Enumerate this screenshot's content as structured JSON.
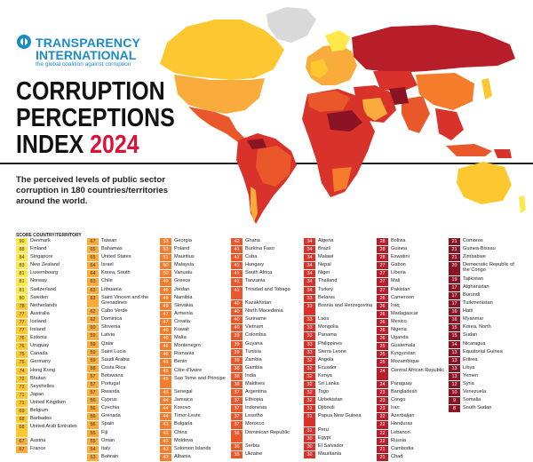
{
  "logo": {
    "line1": "TRANSPARENCY",
    "line2": "INTERNATIONAL",
    "tagline": "the global coalition against corruption"
  },
  "title": {
    "line1": "CORRUPTION",
    "line2": "PERCEPTIONS",
    "line3": "INDEX",
    "year": "2024"
  },
  "description": "The perceived levels of public sector corruption in 180 countries/territories around the world.",
  "legend_header": "SCORE  COUNTRY/TERRITORY",
  "map_colors": {
    "very_clean": "#ffe84a",
    "clean": "#fdc82f",
    "moderate": "#f9ab3c",
    "mid": "#f47c2a",
    "low": "#e9572b",
    "lower": "#d8322b",
    "very_low": "#b81d2a",
    "highly_corrupt": "#8a1324",
    "no_data": "#d9d9d9"
  },
  "columns": [
    [
      {
        "s": "90",
        "n": "Denmark",
        "c": "c-lyellow"
      },
      {
        "s": "88",
        "n": "Finland",
        "c": "c-lyellow"
      },
      {
        "s": "84",
        "n": "Singapore",
        "c": "c-lyellow"
      },
      {
        "s": "83",
        "n": "New Zealand",
        "c": "c-lyellow"
      },
      {
        "s": "81",
        "n": "Luxembourg",
        "c": "c-lyellow"
      },
      {
        "s": "81",
        "n": "Norway",
        "c": "c-lyellow"
      },
      {
        "s": "81",
        "n": "Switzerland",
        "c": "c-lyellow"
      },
      {
        "s": "80",
        "n": "Sweden",
        "c": "c-lyellow"
      },
      {
        "s": "78",
        "n": "Netherlands",
        "c": "c-yellow"
      },
      {
        "s": "77",
        "n": "Australia",
        "c": "c-yellow"
      },
      {
        "s": "77",
        "n": "Iceland",
        "c": "c-yellow"
      },
      {
        "s": "77",
        "n": "Ireland",
        "c": "c-yellow"
      },
      {
        "s": "76",
        "n": "Estonia",
        "c": "c-yellow"
      },
      {
        "s": "76",
        "n": "Uruguay",
        "c": "c-yellow"
      },
      {
        "s": "75",
        "n": "Canada",
        "c": "c-yellow"
      },
      {
        "s": "75",
        "n": "Germany",
        "c": "c-yellow"
      },
      {
        "s": "74",
        "n": "Hong Kong",
        "c": "c-yellow"
      },
      {
        "s": "72",
        "n": "Bhutan",
        "c": "c-yellow"
      },
      {
        "s": "72",
        "n": "Seychelles",
        "c": "c-yellow"
      },
      {
        "s": "71",
        "n": "Japan",
        "c": "c-yellow"
      },
      {
        "s": "71",
        "n": "United Kingdom",
        "c": "c-yellow"
      },
      {
        "s": "69",
        "n": "Belgium",
        "c": "c-yellow"
      },
      {
        "s": "68",
        "n": "Barbados",
        "c": "c-yellow"
      },
      {
        "s": "68",
        "n": "United Arab Emirates",
        "c": "c-yellow",
        "tall": true
      },
      {
        "s": "67",
        "n": "Austria",
        "c": "c-lorange"
      },
      {
        "s": "67",
        "n": "France",
        "c": "c-lorange"
      }
    ],
    [
      {
        "s": "67",
        "n": "Taiwan",
        "c": "c-lorange"
      },
      {
        "s": "65",
        "n": "Bahamas",
        "c": "c-lorange"
      },
      {
        "s": "65",
        "n": "United States",
        "c": "c-lorange"
      },
      {
        "s": "64",
        "n": "Israel",
        "c": "c-lorange"
      },
      {
        "s": "64",
        "n": "Korea, South",
        "c": "c-lorange"
      },
      {
        "s": "63",
        "n": "Chile",
        "c": "c-lorange"
      },
      {
        "s": "63",
        "n": "Lithuania",
        "c": "c-lorange"
      },
      {
        "s": "63",
        "n": "Saint Vincent and the Grenadines",
        "c": "c-lorange",
        "tall": true
      },
      {
        "s": "62",
        "n": "Cabo Verde",
        "c": "c-lorange"
      },
      {
        "s": "62",
        "n": "Dominica",
        "c": "c-lorange"
      },
      {
        "s": "60",
        "n": "Slovenia",
        "c": "c-lorange"
      },
      {
        "s": "59",
        "n": "Latvia",
        "c": "c-lorange"
      },
      {
        "s": "59",
        "n": "Qatar",
        "c": "c-lorange"
      },
      {
        "s": "59",
        "n": "Saint Lucia",
        "c": "c-lorange"
      },
      {
        "s": "59",
        "n": "Saudi Arabia",
        "c": "c-lorange"
      },
      {
        "s": "58",
        "n": "Costa Rica",
        "c": "c-lorange"
      },
      {
        "s": "57",
        "n": "Botswana",
        "c": "c-lorange"
      },
      {
        "s": "57",
        "n": "Portugal",
        "c": "c-lorange"
      },
      {
        "s": "57",
        "n": "Rwanda",
        "c": "c-lorange"
      },
      {
        "s": "56",
        "n": "Cyprus",
        "c": "c-lorange"
      },
      {
        "s": "56",
        "n": "Czechia",
        "c": "c-lorange"
      },
      {
        "s": "56",
        "n": "Grenada",
        "c": "c-lorange"
      },
      {
        "s": "56",
        "n": "Spain",
        "c": "c-lorange"
      },
      {
        "s": "55",
        "n": "Fiji",
        "c": "c-lorange"
      },
      {
        "s": "55",
        "n": "Oman",
        "c": "c-lorange"
      },
      {
        "s": "54",
        "n": "Italy",
        "c": "c-lorange"
      },
      {
        "s": "53",
        "n": "Bahrain",
        "c": "c-lorange"
      }
    ],
    [
      {
        "s": "53",
        "n": "Georgia",
        "c": "c-orange"
      },
      {
        "s": "53",
        "n": "Poland",
        "c": "c-orange"
      },
      {
        "s": "51",
        "n": "Mauritius",
        "c": "c-orange"
      },
      {
        "s": "50",
        "n": "Malaysia",
        "c": "c-orange"
      },
      {
        "s": "50",
        "n": "Vanuatu",
        "c": "c-orange"
      },
      {
        "s": "49",
        "n": "Greece",
        "c": "c-orange"
      },
      {
        "s": "49",
        "n": "Jordan",
        "c": "c-orange"
      },
      {
        "s": "49",
        "n": "Namibia",
        "c": "c-orange"
      },
      {
        "s": "49",
        "n": "Slovakia",
        "c": "c-orange"
      },
      {
        "s": "47",
        "n": "Armenia",
        "c": "c-orange"
      },
      {
        "s": "47",
        "n": "Croatia",
        "c": "c-orange"
      },
      {
        "s": "46",
        "n": "Kuwait",
        "c": "c-orange"
      },
      {
        "s": "46",
        "n": "Malta",
        "c": "c-orange"
      },
      {
        "s": "46",
        "n": "Montenegro",
        "c": "c-orange"
      },
      {
        "s": "46",
        "n": "Romania",
        "c": "c-orange"
      },
      {
        "s": "45",
        "n": "Benin",
        "c": "c-orange"
      },
      {
        "s": "45",
        "n": "Côte d'Ivoire",
        "c": "c-orange"
      },
      {
        "s": "45",
        "n": "Sao Tome and Principe",
        "c": "c-orange",
        "tall": true
      },
      {
        "s": "45",
        "n": "Senegal",
        "c": "c-orange"
      },
      {
        "s": "44",
        "n": "Jamaica",
        "c": "c-orange"
      },
      {
        "s": "44",
        "n": "Kosovo",
        "c": "c-orange"
      },
      {
        "s": "44",
        "n": "Timor-Leste",
        "c": "c-orange"
      },
      {
        "s": "43",
        "n": "Bulgaria",
        "c": "c-orange"
      },
      {
        "s": "43",
        "n": "China",
        "c": "c-orange"
      },
      {
        "s": "43",
        "n": "Moldova",
        "c": "c-orange"
      },
      {
        "s": "43",
        "n": "Solomon Islands",
        "c": "c-orange"
      },
      {
        "s": "43",
        "n": "Albania",
        "c": "c-orange"
      }
    ],
    [
      {
        "s": "42",
        "n": "Ghana",
        "c": "c-dorange"
      },
      {
        "s": "41",
        "n": "Burkina Faso",
        "c": "c-dorange"
      },
      {
        "s": "41",
        "n": "Cuba",
        "c": "c-dorange"
      },
      {
        "s": "41",
        "n": "Hungary",
        "c": "c-dorange"
      },
      {
        "s": "41",
        "n": "South Africa",
        "c": "c-dorange"
      },
      {
        "s": "41",
        "n": "Tanzania",
        "c": "c-dorange"
      },
      {
        "s": "41",
        "n": "Trinidad and Tobago",
        "c": "c-dorange",
        "tall": true
      },
      {
        "s": "40",
        "n": "Kazakhstan",
        "c": "c-dorange"
      },
      {
        "s": "40",
        "n": "North Macedonia",
        "c": "c-dorange"
      },
      {
        "s": "40",
        "n": "Suriname",
        "c": "c-dorange"
      },
      {
        "s": "40",
        "n": "Vietnam",
        "c": "c-dorange"
      },
      {
        "s": "39",
        "n": "Colombia",
        "c": "c-dorange"
      },
      {
        "s": "39",
        "n": "Guyana",
        "c": "c-dorange"
      },
      {
        "s": "39",
        "n": "Tunisia",
        "c": "c-dorange"
      },
      {
        "s": "39",
        "n": "Zambia",
        "c": "c-dorange"
      },
      {
        "s": "38",
        "n": "Gambia",
        "c": "c-dorange"
      },
      {
        "s": "38",
        "n": "India",
        "c": "c-dorange"
      },
      {
        "s": "38",
        "n": "Maldives",
        "c": "c-dorange"
      },
      {
        "s": "37",
        "n": "Argentina",
        "c": "c-dorange"
      },
      {
        "s": "37",
        "n": "Ethiopia",
        "c": "c-dorange"
      },
      {
        "s": "37",
        "n": "Indonesia",
        "c": "c-dorange"
      },
      {
        "s": "37",
        "n": "Lesotho",
        "c": "c-dorange"
      },
      {
        "s": "37",
        "n": "Morocco",
        "c": "c-dorange"
      },
      {
        "s": "36",
        "n": "Dominican Republic",
        "c": "c-dorange",
        "tall": true
      },
      {
        "s": "35",
        "n": "Serbia",
        "c": "c-dorange"
      },
      {
        "s": "35",
        "n": "Ukraine",
        "c": "c-dorange"
      }
    ],
    [
      {
        "s": "34",
        "n": "Algeria",
        "c": "c-red"
      },
      {
        "s": "34",
        "n": "Brazil",
        "c": "c-red"
      },
      {
        "s": "34",
        "n": "Malawi",
        "c": "c-red"
      },
      {
        "s": "34",
        "n": "Nepal",
        "c": "c-red"
      },
      {
        "s": "34",
        "n": "Niger",
        "c": "c-red"
      },
      {
        "s": "34",
        "n": "Thailand",
        "c": "c-red"
      },
      {
        "s": "34",
        "n": "Turkey",
        "c": "c-red"
      },
      {
        "s": "33",
        "n": "Belarus",
        "c": "c-red"
      },
      {
        "s": "33",
        "n": "Bosnia and Herzegovina",
        "c": "c-red",
        "tall": true
      },
      {
        "s": "33",
        "n": "Laos",
        "c": "c-red"
      },
      {
        "s": "33",
        "n": "Mongolia",
        "c": "c-red"
      },
      {
        "s": "33",
        "n": "Panama",
        "c": "c-red"
      },
      {
        "s": "33",
        "n": "Philippines",
        "c": "c-red"
      },
      {
        "s": "33",
        "n": "Sierra Leone",
        "c": "c-red"
      },
      {
        "s": "32",
        "n": "Angola",
        "c": "c-red"
      },
      {
        "s": "32",
        "n": "Ecuador",
        "c": "c-red"
      },
      {
        "s": "32",
        "n": "Kenya",
        "c": "c-red"
      },
      {
        "s": "32",
        "n": "Sri Lanka",
        "c": "c-red"
      },
      {
        "s": "32",
        "n": "Togo",
        "c": "c-red"
      },
      {
        "s": "32",
        "n": "Uzbekistan",
        "c": "c-red"
      },
      {
        "s": "31",
        "n": "Djibouti",
        "c": "c-red"
      },
      {
        "s": "31",
        "n": "Papua New Guinea",
        "c": "c-red",
        "tall": true
      },
      {
        "s": "31",
        "n": "Peru",
        "c": "c-red"
      },
      {
        "s": "30",
        "n": "Egypt",
        "c": "c-red"
      },
      {
        "s": "30",
        "n": "El Salvador",
        "c": "c-red"
      },
      {
        "s": "30",
        "n": "Mauritania",
        "c": "c-red"
      }
    ],
    [
      {
        "s": "28",
        "n": "Bolivia",
        "c": "c-dred"
      },
      {
        "s": "28",
        "n": "Guinea",
        "c": "c-dred"
      },
      {
        "s": "28",
        "n": "Eswatini",
        "c": "c-dred"
      },
      {
        "s": "27",
        "n": "Gabon",
        "c": "c-dred"
      },
      {
        "s": "27",
        "n": "Liberia",
        "c": "c-dred"
      },
      {
        "s": "27",
        "n": "Mali",
        "c": "c-dred"
      },
      {
        "s": "27",
        "n": "Pakistan",
        "c": "c-dred"
      },
      {
        "s": "26",
        "n": "Cameroon",
        "c": "c-dred"
      },
      {
        "s": "26",
        "n": "Iraq",
        "c": "c-dred"
      },
      {
        "s": "26",
        "n": "Madagascar",
        "c": "c-dred"
      },
      {
        "s": "26",
        "n": "Mexico",
        "c": "c-dred"
      },
      {
        "s": "26",
        "n": "Nigeria",
        "c": "c-dred"
      },
      {
        "s": "26",
        "n": "Uganda",
        "c": "c-dred"
      },
      {
        "s": "25",
        "n": "Guatemala",
        "c": "c-dred"
      },
      {
        "s": "25",
        "n": "Kyrgyzstan",
        "c": "c-dred"
      },
      {
        "s": "25",
        "n": "Mozambique",
        "c": "c-dred"
      },
      {
        "s": "24",
        "n": "Central African Republic",
        "c": "c-dred",
        "tall": true
      },
      {
        "s": "24",
        "n": "Paraguay",
        "c": "c-dred"
      },
      {
        "s": "23",
        "n": "Bangladesh",
        "c": "c-dred"
      },
      {
        "s": "23",
        "n": "Congo",
        "c": "c-dred"
      },
      {
        "s": "23",
        "n": "Iran",
        "c": "c-dred"
      },
      {
        "s": "22",
        "n": "Azerbaijan",
        "c": "c-dred"
      },
      {
        "s": "22",
        "n": "Honduras",
        "c": "c-dred"
      },
      {
        "s": "22",
        "n": "Lebanon",
        "c": "c-dred"
      },
      {
        "s": "22",
        "n": "Russia",
        "c": "c-dred"
      },
      {
        "s": "21",
        "n": "Cambodia",
        "c": "c-dred"
      },
      {
        "s": "21",
        "n": "Chad",
        "c": "c-dred"
      }
    ],
    [
      {
        "s": "21",
        "n": "Comoros",
        "c": "c-vdred"
      },
      {
        "s": "21",
        "n": "Guinea-Bissau",
        "c": "c-vdred"
      },
      {
        "s": "21",
        "n": "Zimbabwe",
        "c": "c-vdred"
      },
      {
        "s": "20",
        "n": "Democratic Republic of the Congo",
        "c": "c-vdred",
        "tall": true
      },
      {
        "s": "19",
        "n": "Tajikistan",
        "c": "c-vdred"
      },
      {
        "s": "17",
        "n": "Afghanistan",
        "c": "c-vdred"
      },
      {
        "s": "17",
        "n": "Burundi",
        "c": "c-vdred"
      },
      {
        "s": "17",
        "n": "Turkmenistan",
        "c": "c-vdred"
      },
      {
        "s": "16",
        "n": "Haiti",
        "c": "c-vdred"
      },
      {
        "s": "16",
        "n": "Myanmar",
        "c": "c-vdred"
      },
      {
        "s": "15",
        "n": "Korea, North",
        "c": "c-vdred"
      },
      {
        "s": "15",
        "n": "Sudan",
        "c": "c-vdred"
      },
      {
        "s": "14",
        "n": "Nicaragua",
        "c": "c-vdred"
      },
      {
        "s": "13",
        "n": "Equatorial Guinea",
        "c": "c-vdred"
      },
      {
        "s": "13",
        "n": "Eritrea",
        "c": "c-vdred"
      },
      {
        "s": "13",
        "n": "Libya",
        "c": "c-vdred"
      },
      {
        "s": "13",
        "n": "Yemen",
        "c": "c-vdred"
      },
      {
        "s": "12",
        "n": "Syria",
        "c": "c-vdred"
      },
      {
        "s": "10",
        "n": "Venezuela",
        "c": "c-vdred"
      },
      {
        "s": "9",
        "n": "Somalia",
        "c": "c-vdred"
      },
      {
        "s": "8",
        "n": "South Sudan",
        "c": "c-vdred"
      }
    ]
  ]
}
